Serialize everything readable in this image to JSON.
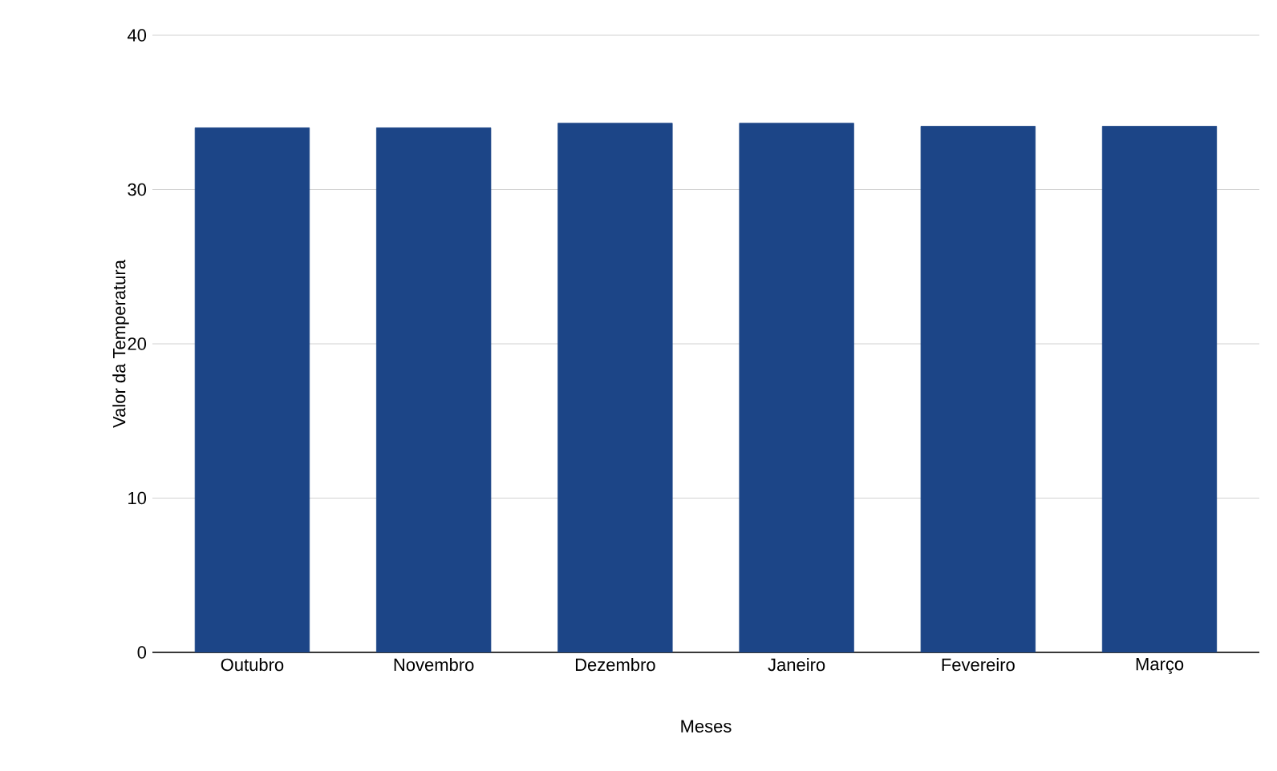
{
  "chart_data": {
    "type": "bar",
    "xlabel": "Meses",
    "ylabel": "Valor da Temperatura",
    "categories": [
      "Outubro",
      "Novembro",
      "Dezembro",
      "Janeiro",
      "Fevereiro",
      "Março"
    ],
    "values": [
      34.0,
      34.0,
      34.3,
      34.3,
      34.1,
      34.1
    ],
    "color": "#1c4587",
    "ylim": [
      0,
      40
    ],
    "yticks": [
      0,
      10,
      20,
      30,
      40
    ],
    "grid": "y"
  }
}
